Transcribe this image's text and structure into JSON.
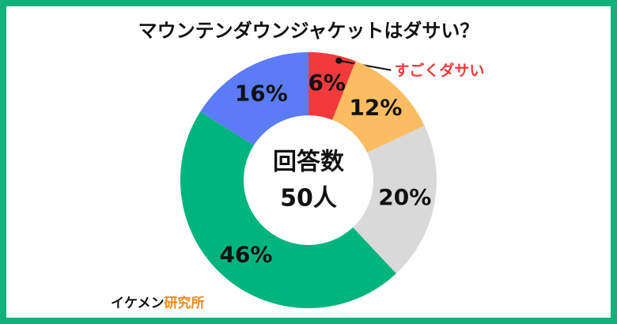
{
  "chart_data": {
    "type": "donut",
    "title": "マウンテンダウンジャケットはダサい？",
    "categories": [
      "すごくダサい",
      null,
      null,
      null,
      null
    ],
    "values": [
      6,
      12,
      20,
      46,
      16
    ],
    "value_labels": [
      "6%",
      "12%",
      "20%",
      "46%",
      "16%"
    ],
    "colors": [
      "#f23a3c",
      "#fcbd62",
      "#d9d9d9",
      "#00b47d",
      "#5b7cf6"
    ],
    "center_text": [
      "回答数",
      "50人"
    ]
  },
  "footer": {
    "brand": "イケメン",
    "brand_accent": "研究所"
  }
}
